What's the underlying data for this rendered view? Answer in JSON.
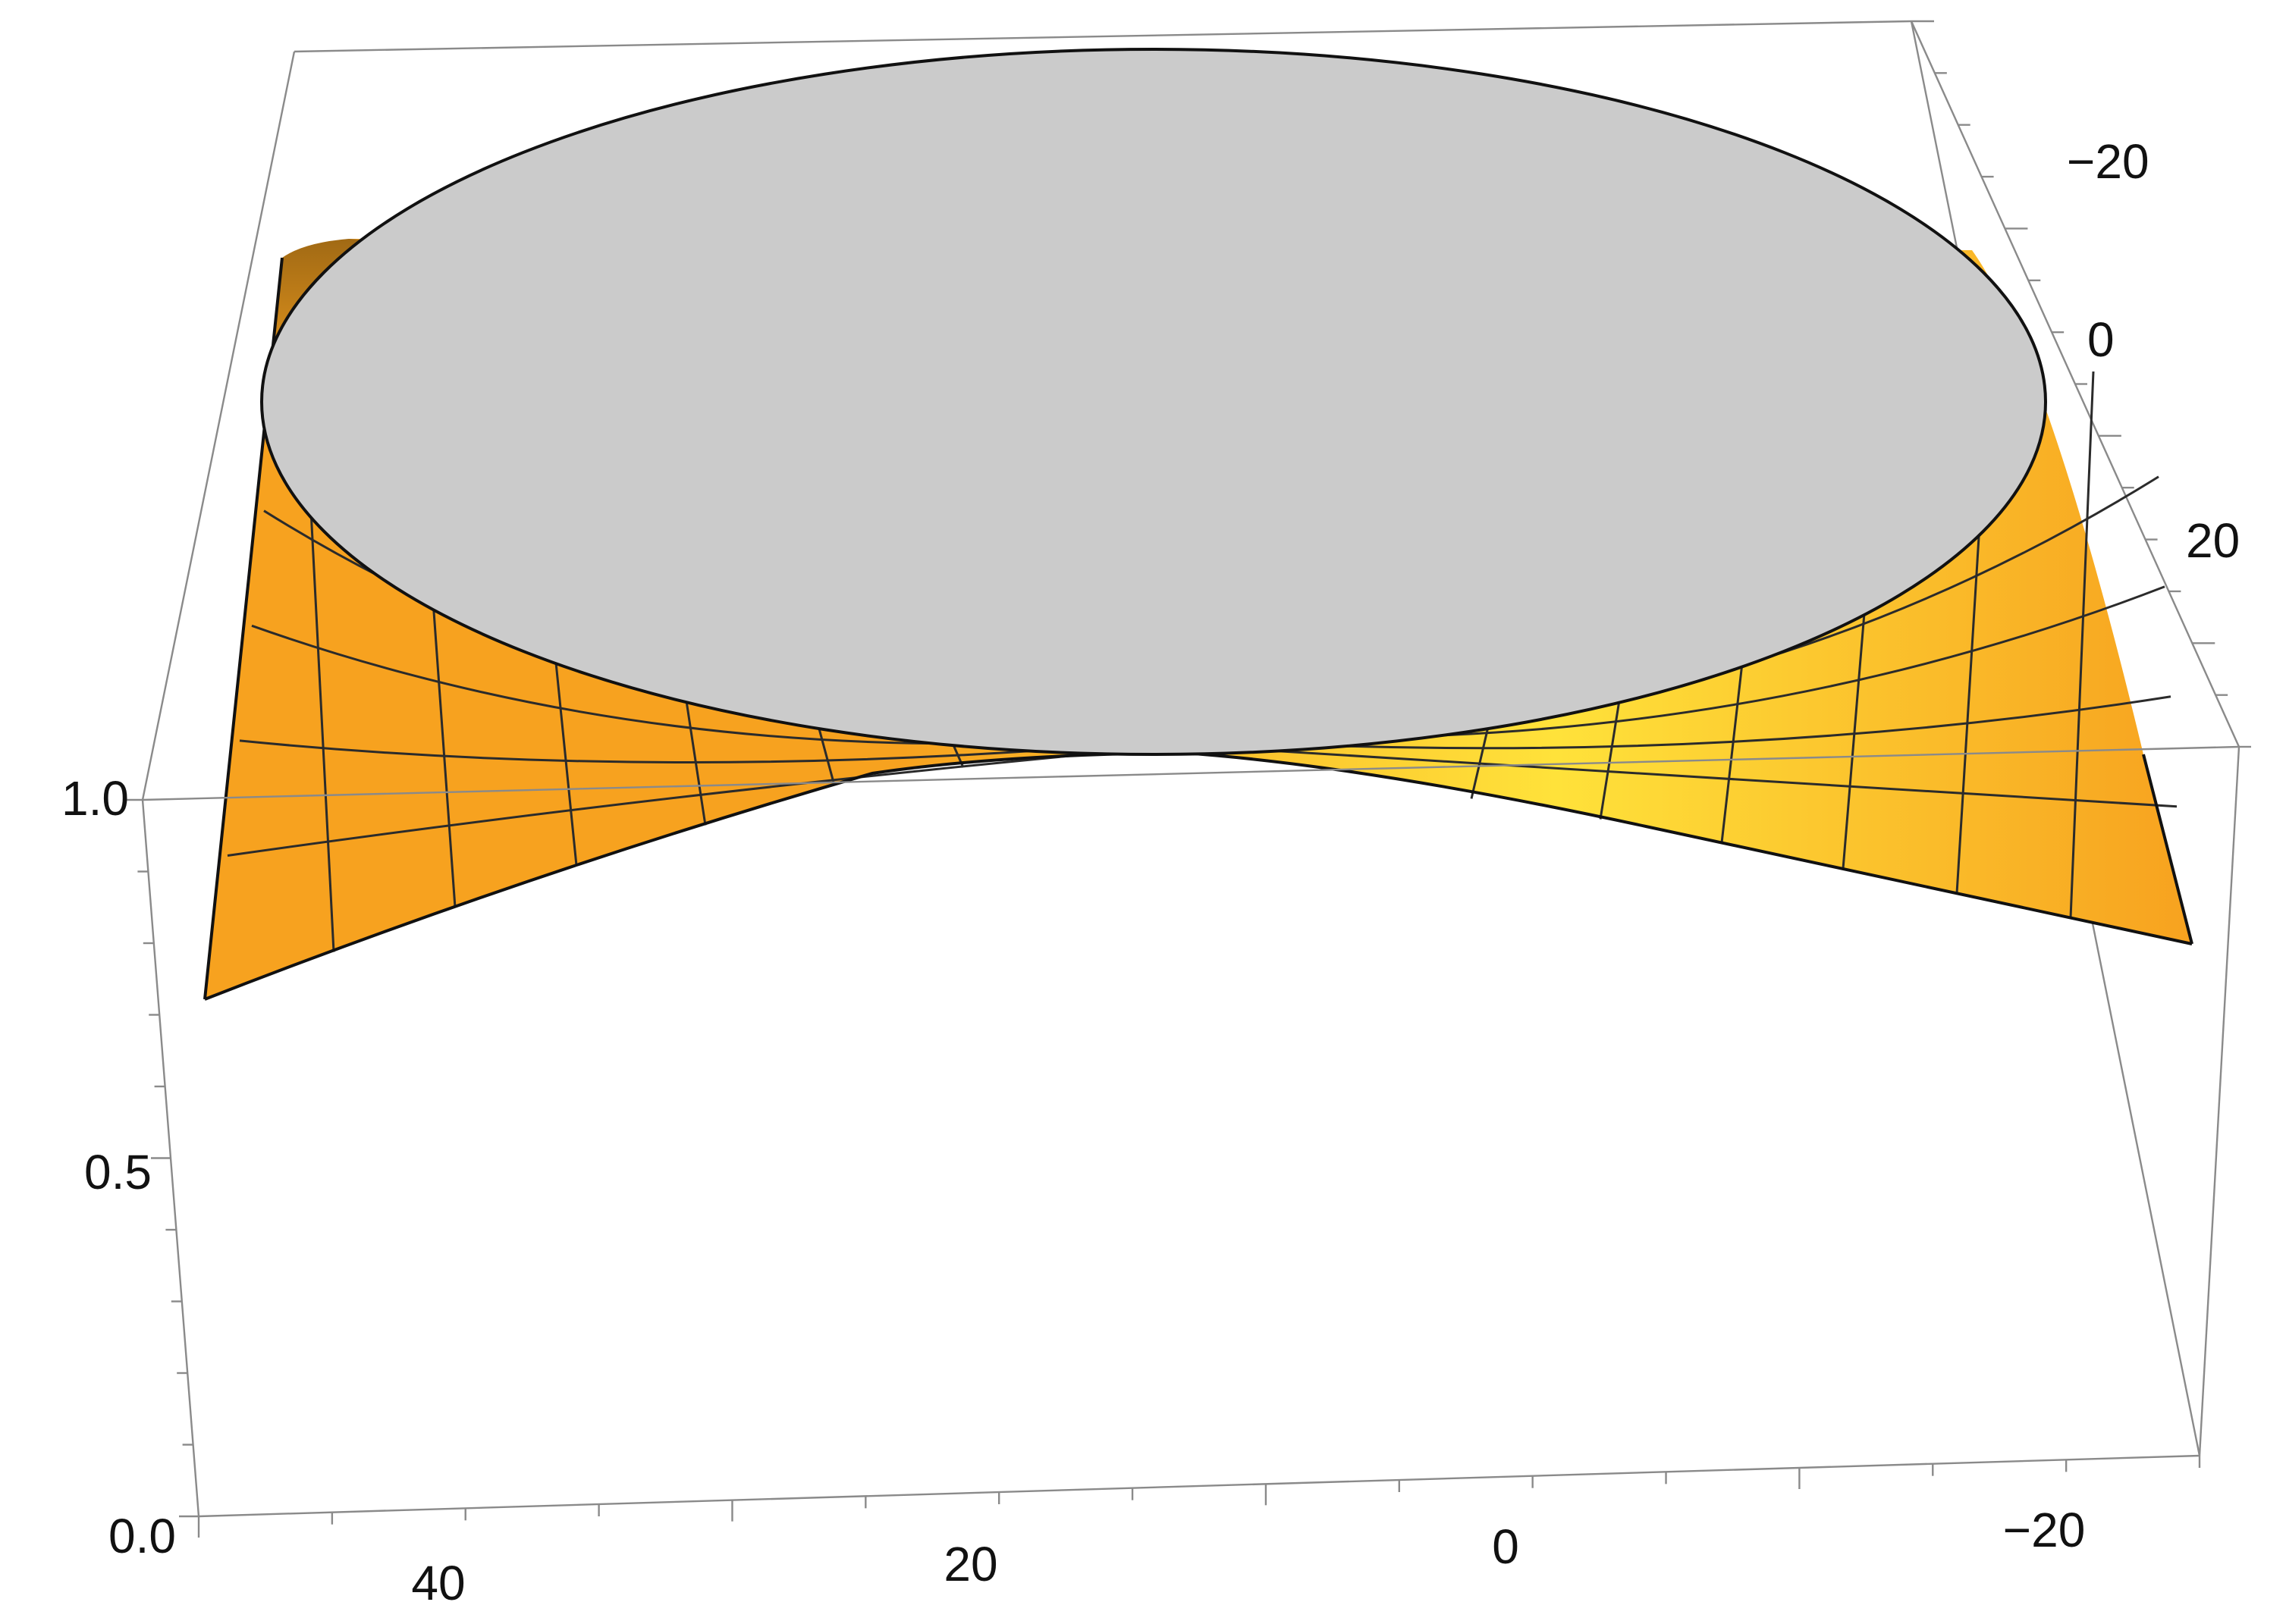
{
  "chart_data": {
    "type": "surface3d",
    "title": "",
    "xlabel": "",
    "ylabel": "",
    "zlabel": "",
    "x_axis": {
      "range": [
        -25,
        50
      ],
      "tick_labels": [
        "40",
        "20",
        "0",
        "−20"
      ]
    },
    "y_axis": {
      "range": [
        -35,
        35
      ],
      "tick_labels": [
        "−20",
        "0",
        "20"
      ]
    },
    "z_axis": {
      "range": [
        0,
        1
      ],
      "tick_labels": [
        "0.0",
        "0.5",
        "1.0"
      ]
    },
    "surface": {
      "description_values": {
        "flat_top_value": 1.0,
        "corner_value_min": 0.75
      },
      "colors": {
        "surface_light": "#FFE23A",
        "surface_mid": "#F7A21F",
        "surface_dark": "#B45E10",
        "disc": "#CBCBCB",
        "mesh": "#2B2B2B"
      }
    },
    "grid": false,
    "legend": "none"
  }
}
